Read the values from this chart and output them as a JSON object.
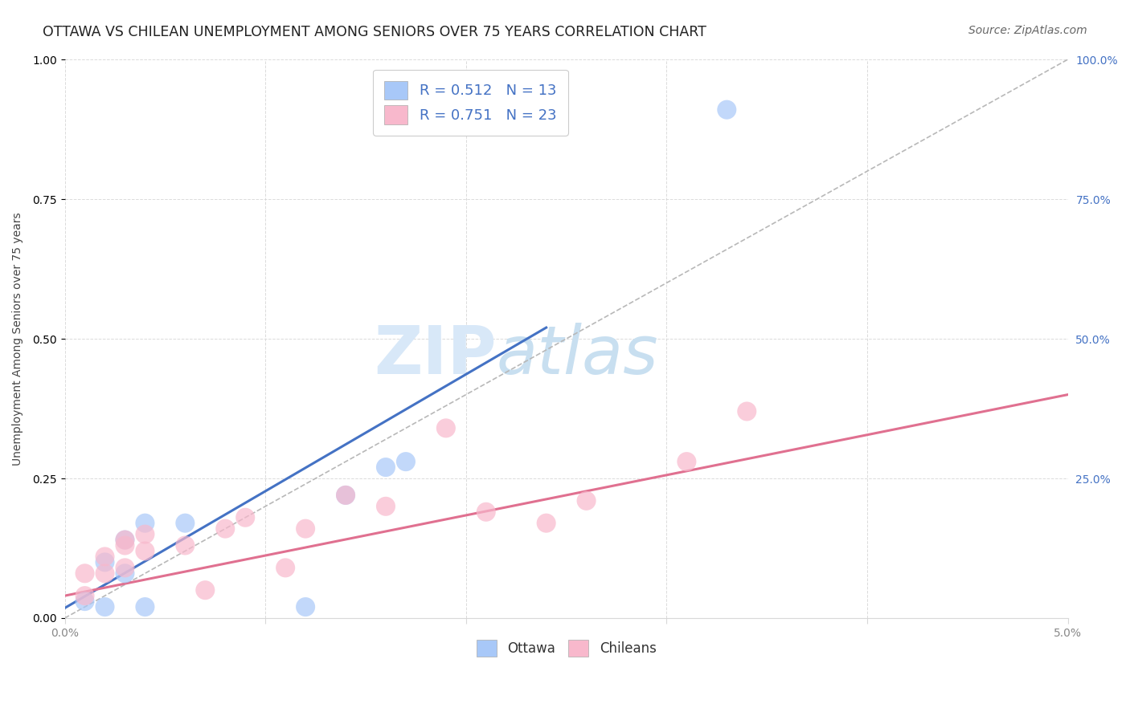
{
  "title": "OTTAWA VS CHILEAN UNEMPLOYMENT AMONG SENIORS OVER 75 YEARS CORRELATION CHART",
  "source": "Source: ZipAtlas.com",
  "ylabel": "Unemployment Among Seniors over 75 years",
  "xlim": [
    0.0,
    0.05
  ],
  "ylim": [
    0.0,
    1.0
  ],
  "ottawa_color": "#a8c8f8",
  "chileans_color": "#f8b8cc",
  "ottawa_line_color": "#4472c4",
  "chileans_line_color": "#e07090",
  "diagonal_color": "#b8b8b8",
  "watermark_text": "ZIPatlas",
  "watermark_color": "#d8e8f8",
  "legend_text_color": "#4472c4",
  "legend_R_ottawa": "R = 0.512",
  "legend_N_ottawa": "N = 13",
  "legend_R_chileans": "R = 0.751",
  "legend_N_chileans": "N = 23",
  "ottawa_x": [
    0.001,
    0.002,
    0.002,
    0.003,
    0.003,
    0.004,
    0.004,
    0.006,
    0.012,
    0.014,
    0.016,
    0.017,
    0.033
  ],
  "ottawa_y": [
    0.03,
    0.02,
    0.1,
    0.08,
    0.14,
    0.02,
    0.17,
    0.17,
    0.02,
    0.22,
    0.27,
    0.28,
    0.91
  ],
  "chileans_x": [
    0.001,
    0.001,
    0.002,
    0.002,
    0.003,
    0.003,
    0.003,
    0.004,
    0.004,
    0.006,
    0.007,
    0.008,
    0.009,
    0.011,
    0.012,
    0.014,
    0.016,
    0.019,
    0.021,
    0.024,
    0.026,
    0.031,
    0.034
  ],
  "chileans_y": [
    0.04,
    0.08,
    0.08,
    0.11,
    0.09,
    0.13,
    0.14,
    0.12,
    0.15,
    0.13,
    0.05,
    0.16,
    0.18,
    0.09,
    0.16,
    0.22,
    0.2,
    0.34,
    0.19,
    0.17,
    0.21,
    0.28,
    0.37
  ],
  "ottawa_line_x0": 0.0,
  "ottawa_line_y0": 0.018,
  "ottawa_line_x1": 0.024,
  "ottawa_line_y1": 0.52,
  "chileans_line_x0": 0.0,
  "chileans_line_y0": 0.04,
  "chileans_line_x1": 0.05,
  "chileans_line_y1": 0.4,
  "background_color": "#ffffff",
  "title_fontsize": 12.5,
  "axis_label_fontsize": 10,
  "tick_fontsize": 10,
  "legend_fontsize": 13,
  "source_fontsize": 10,
  "grid_color": "#d8d8d8",
  "tick_color": "#888888"
}
